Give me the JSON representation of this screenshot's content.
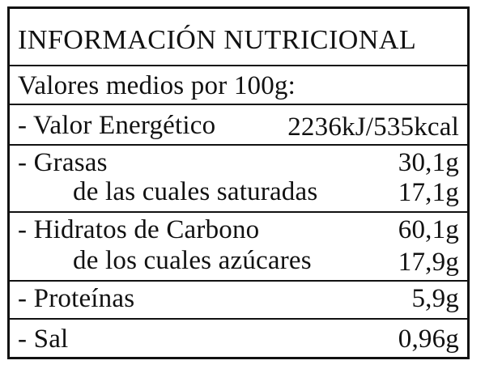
{
  "table": {
    "title": "INFORMACIÓN NUTRICIONAL",
    "subtitle": "Valores medios por 100g:",
    "rows": [
      {
        "label": "- Valor Energético",
        "value": "2236kJ/535kcal"
      },
      {
        "label": "- Grasas",
        "value": "30,1g"
      },
      {
        "label": "de las cuales saturadas",
        "value": "17,1g"
      },
      {
        "label": "- Hidratos de Carbono",
        "value": "60,1g"
      },
      {
        "label": "de los cuales azúcares",
        "value": "17,9g"
      },
      {
        "label": "- Proteínas",
        "value": "5,9g"
      },
      {
        "label": "- Sal",
        "value": "0,96g"
      }
    ]
  }
}
